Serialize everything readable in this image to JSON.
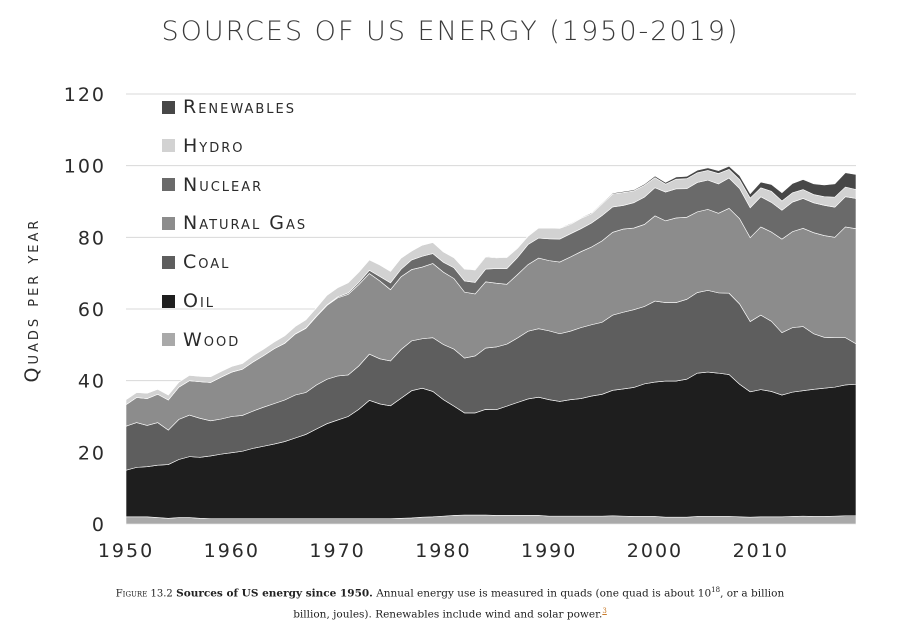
{
  "figure": {
    "label": "Figure 13.2",
    "bold_title": "Sources of US energy since 1950.",
    "text": "Annual energy use is measured in quads (one quad is about 10",
    "superscript": "18",
    "text_after": ", or a billion billion, joules). Renewables include wind and solar power.",
    "footnote": "3"
  },
  "chart_data": {
    "type": "area",
    "stacked": true,
    "title": "SOURCES OF US ENERGY (1950-2019)",
    "xlabel": "",
    "ylabel": "Quads per year",
    "xlim": [
      1950,
      2019
    ],
    "ylim": [
      0,
      120
    ],
    "x_ticks": [
      "1950",
      "1960",
      "1970",
      "1980",
      "1990",
      "2000",
      "2010"
    ],
    "y_ticks": [
      "0",
      "20",
      "40",
      "60",
      "80",
      "100",
      "120"
    ],
    "grid": "horizontal",
    "legend_position": "top-left",
    "x": [
      1950,
      1951,
      1952,
      1953,
      1954,
      1955,
      1956,
      1957,
      1958,
      1959,
      1960,
      1961,
      1962,
      1963,
      1964,
      1965,
      1966,
      1967,
      1968,
      1969,
      1970,
      1971,
      1972,
      1973,
      1974,
      1975,
      1976,
      1977,
      1978,
      1979,
      1980,
      1981,
      1982,
      1983,
      1984,
      1985,
      1986,
      1987,
      1988,
      1989,
      1990,
      1991,
      1992,
      1993,
      1994,
      1995,
      1996,
      1997,
      1998,
      1999,
      2000,
      2001,
      2002,
      2003,
      2004,
      2005,
      2006,
      2007,
      2008,
      2009,
      2010,
      2011,
      2012,
      2013,
      2014,
      2015,
      2016,
      2017,
      2018,
      2019
    ],
    "series": [
      {
        "name": "Wood",
        "color": "#a9a9a9",
        "values": [
          2.0,
          2.0,
          2.0,
          1.8,
          1.6,
          1.8,
          1.8,
          1.6,
          1.5,
          1.5,
          1.5,
          1.5,
          1.5,
          1.5,
          1.5,
          1.5,
          1.5,
          1.5,
          1.5,
          1.5,
          1.5,
          1.5,
          1.5,
          1.5,
          1.5,
          1.5,
          1.6,
          1.7,
          1.9,
          2.0,
          2.2,
          2.4,
          2.5,
          2.5,
          2.5,
          2.4,
          2.4,
          2.4,
          2.4,
          2.4,
          2.2,
          2.2,
          2.2,
          2.2,
          2.2,
          2.2,
          2.3,
          2.2,
          2.1,
          2.1,
          2.1,
          1.9,
          1.9,
          1.9,
          2.1,
          2.1,
          2.1,
          2.1,
          2.0,
          1.9,
          2.0,
          2.0,
          2.0,
          2.1,
          2.2,
          2.1,
          2.1,
          2.2,
          2.3,
          2.3
        ]
      },
      {
        "name": "Oil",
        "color": "#1e1e1e",
        "values": [
          13.0,
          13.8,
          14.0,
          14.6,
          15.0,
          16.2,
          17.0,
          17.0,
          17.5,
          18.0,
          18.4,
          18.8,
          19.6,
          20.2,
          20.8,
          21.5,
          22.5,
          23.5,
          25.0,
          26.5,
          27.5,
          28.5,
          30.5,
          33.0,
          32.0,
          31.5,
          33.5,
          35.5,
          36.0,
          35.0,
          32.5,
          30.5,
          28.5,
          28.5,
          29.5,
          29.5,
          30.5,
          31.5,
          32.5,
          33.0,
          32.5,
          32.0,
          32.5,
          32.8,
          33.5,
          34.0,
          35.0,
          35.5,
          36.0,
          37.0,
          37.5,
          38.0,
          38.0,
          38.5,
          40.0,
          40.3,
          40.0,
          39.6,
          37.0,
          35.0,
          35.5,
          35.0,
          34.0,
          34.7,
          35.0,
          35.5,
          35.8,
          36.0,
          36.5,
          36.7
        ]
      },
      {
        "name": "Coal",
        "color": "#5e5e5e",
        "values": [
          12.3,
          12.5,
          11.5,
          11.9,
          9.6,
          11.2,
          11.6,
          10.9,
          9.8,
          9.8,
          10.1,
          10.0,
          10.4,
          10.9,
          11.3,
          11.6,
          12.0,
          11.7,
          12.3,
          12.4,
          12.3,
          11.6,
          12.1,
          12.9,
          12.6,
          12.5,
          13.6,
          13.9,
          13.8,
          15.0,
          15.4,
          15.9,
          15.3,
          15.9,
          17.1,
          17.5,
          17.3,
          18.0,
          18.9,
          19.1,
          19.2,
          18.9,
          19.1,
          19.8,
          19.9,
          20.1,
          21.0,
          21.4,
          21.7,
          21.6,
          22.6,
          21.9,
          21.9,
          22.3,
          22.5,
          22.8,
          22.4,
          22.7,
          22.4,
          19.6,
          20.8,
          19.6,
          17.4,
          18.0,
          17.9,
          15.5,
          14.2,
          13.8,
          13.2,
          11.3
        ]
      },
      {
        "name": "Natural Gas",
        "color": "#8c8c8c",
        "values": [
          6.0,
          7.0,
          7.5,
          7.9,
          8.4,
          9.0,
          9.6,
          10.2,
          10.7,
          11.7,
          12.4,
          12.9,
          13.7,
          14.4,
          15.3,
          15.8,
          17.0,
          17.9,
          19.1,
          20.6,
          21.8,
          22.5,
          22.7,
          22.5,
          21.7,
          19.9,
          20.3,
          19.9,
          20.0,
          20.7,
          20.2,
          19.7,
          18.4,
          17.3,
          18.5,
          17.8,
          16.7,
          17.7,
          18.6,
          19.7,
          19.6,
          20.0,
          20.7,
          21.2,
          21.7,
          22.7,
          23.1,
          23.2,
          22.8,
          22.9,
          23.8,
          22.8,
          23.6,
          22.9,
          22.5,
          22.6,
          22.2,
          23.7,
          23.8,
          23.4,
          24.6,
          24.9,
          26.1,
          26.8,
          27.4,
          28.2,
          28.4,
          28.0,
          30.9,
          32.1
        ]
      },
      {
        "name": "Nuclear",
        "color": "#6a6a6a",
        "values": [
          0,
          0,
          0,
          0,
          0,
          0,
          0,
          0,
          0,
          0,
          0,
          0,
          0,
          0,
          0,
          0.04,
          0.06,
          0.09,
          0.14,
          0.15,
          0.24,
          0.41,
          0.58,
          0.91,
          1.27,
          1.9,
          2.11,
          2.7,
          3.02,
          2.78,
          2.74,
          3.01,
          3.13,
          3.2,
          3.55,
          4.08,
          4.38,
          4.75,
          5.59,
          5.6,
          6.1,
          6.42,
          6.48,
          6.41,
          6.69,
          7.08,
          7.09,
          6.6,
          7.07,
          7.61,
          7.86,
          8.03,
          8.14,
          7.96,
          8.22,
          8.16,
          8.21,
          8.46,
          8.43,
          8.36,
          8.43,
          8.27,
          8.06,
          8.24,
          8.34,
          8.34,
          8.43,
          8.42,
          8.44,
          8.45
        ]
      },
      {
        "name": "Hydro",
        "color": "#d2d2d2",
        "values": [
          1.4,
          1.4,
          1.5,
          1.4,
          1.4,
          1.4,
          1.5,
          1.5,
          1.6,
          1.6,
          1.6,
          1.6,
          1.8,
          1.8,
          1.9,
          2.1,
          2.1,
          2.3,
          2.3,
          2.7,
          2.6,
          2.8,
          2.9,
          2.9,
          3.2,
          3.2,
          3.1,
          2.5,
          3.1,
          3.1,
          2.9,
          2.8,
          3.3,
          3.5,
          3.4,
          3.0,
          3.1,
          2.6,
          2.3,
          2.8,
          3.0,
          3.0,
          2.6,
          2.9,
          2.6,
          3.2,
          3.6,
          3.6,
          3.3,
          3.3,
          2.8,
          2.2,
          2.7,
          2.8,
          2.7,
          2.7,
          2.9,
          2.4,
          2.5,
          2.7,
          2.5,
          3.1,
          2.6,
          2.6,
          2.5,
          2.3,
          2.4,
          2.8,
          2.7,
          2.5
        ]
      },
      {
        "name": "Renewables",
        "color": "#474747",
        "values": [
          0,
          0,
          0,
          0,
          0,
          0,
          0,
          0,
          0,
          0,
          0,
          0,
          0,
          0,
          0,
          0,
          0,
          0,
          0,
          0,
          0,
          0,
          0,
          0,
          0,
          0,
          0,
          0,
          0,
          0,
          0,
          0,
          0,
          0.05,
          0.06,
          0.08,
          0.1,
          0.12,
          0.12,
          0.12,
          0.15,
          0.18,
          0.2,
          0.2,
          0.22,
          0.25,
          0.27,
          0.3,
          0.3,
          0.35,
          0.45,
          0.5,
          0.6,
          0.65,
          0.7,
          0.75,
          0.8,
          0.9,
          1.1,
          1.2,
          1.6,
          1.9,
          2.3,
          2.6,
          2.8,
          3.0,
          3.3,
          3.7,
          4.0,
          4.2
        ]
      }
    ]
  }
}
